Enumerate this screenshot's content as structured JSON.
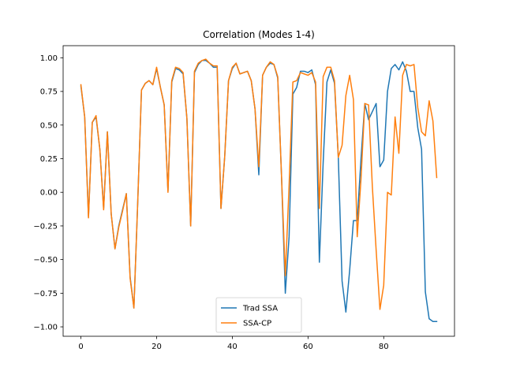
{
  "chart_data": {
    "type": "line",
    "title": "Correlation (Modes 1-4)",
    "xlabel": "",
    "ylabel": "",
    "xlim": [
      -4.7,
      98.7
    ],
    "ylim": [
      -1.07,
      1.09
    ],
    "xticks": [
      0,
      20,
      40,
      60,
      80
    ],
    "yticks": [
      1.0,
      0.75,
      0.5,
      0.25,
      0.0,
      -0.25,
      -0.5,
      -0.75,
      -1.0
    ],
    "ytick_labels": [
      "1.00",
      "0.75",
      "0.50",
      "0.25",
      "0.00",
      "−0.25",
      "−0.50",
      "−0.75",
      "−1.00"
    ],
    "grid": false,
    "legend_position": "lower center",
    "series": [
      {
        "name": "Trad SSA",
        "color": "#1f77b4",
        "values": [
          0.79,
          0.56,
          -0.18,
          0.52,
          0.56,
          0.32,
          -0.12,
          0.45,
          -0.16,
          -0.42,
          -0.25,
          -0.13,
          -0.01,
          -0.63,
          -0.86,
          -0.08,
          0.76,
          0.81,
          0.83,
          0.8,
          0.92,
          0.78,
          0.65,
          0.01,
          0.82,
          0.92,
          0.91,
          0.88,
          0.55,
          -0.25,
          0.89,
          0.95,
          0.98,
          0.98,
          0.96,
          0.93,
          0.93,
          -0.12,
          0.27,
          0.83,
          0.92,
          0.96,
          0.88,
          0.89,
          0.9,
          0.83,
          0.62,
          0.13,
          0.87,
          0.93,
          0.96,
          0.95,
          0.85,
          0.12,
          -0.75,
          -0.33,
          0.73,
          0.78,
          0.9,
          0.9,
          0.89,
          0.91,
          0.8,
          -0.52,
          0.22,
          0.82,
          0.91,
          0.81,
          0.26,
          -0.66,
          -0.89,
          -0.58,
          -0.21,
          -0.21,
          0.25,
          0.66,
          0.54,
          0.6,
          0.66,
          0.19,
          0.24,
          0.75,
          0.92,
          0.95,
          0.91,
          0.97,
          0.9,
          0.75,
          0.75,
          0.48,
          0.32,
          -0.74,
          -0.94,
          -0.96,
          -0.96
        ]
      },
      {
        "name": "SSA-CP",
        "color": "#ff7f0e",
        "values": [
          0.8,
          0.56,
          -0.19,
          0.52,
          0.57,
          0.32,
          -0.13,
          0.45,
          -0.16,
          -0.42,
          -0.26,
          -0.14,
          -0.01,
          -0.64,
          -0.86,
          -0.08,
          0.76,
          0.81,
          0.83,
          0.8,
          0.93,
          0.78,
          0.65,
          0.0,
          0.83,
          0.93,
          0.92,
          0.89,
          0.55,
          -0.25,
          0.9,
          0.96,
          0.98,
          0.99,
          0.96,
          0.94,
          0.94,
          -0.12,
          0.27,
          0.83,
          0.93,
          0.96,
          0.88,
          0.89,
          0.9,
          0.83,
          0.62,
          0.19,
          0.87,
          0.93,
          0.97,
          0.95,
          0.86,
          0.12,
          -0.62,
          0.05,
          0.82,
          0.83,
          0.89,
          0.88,
          0.87,
          0.89,
          0.82,
          -0.12,
          0.86,
          0.93,
          0.93,
          0.83,
          0.26,
          0.35,
          0.72,
          0.87,
          0.69,
          -0.33,
          0.1,
          0.66,
          0.65,
          0.04,
          -0.43,
          -0.87,
          -0.69,
          0.0,
          -0.02,
          0.56,
          0.29,
          0.87,
          0.95,
          0.94,
          0.95,
          0.63,
          0.45,
          0.42,
          0.68,
          0.53,
          0.11
        ]
      }
    ]
  }
}
